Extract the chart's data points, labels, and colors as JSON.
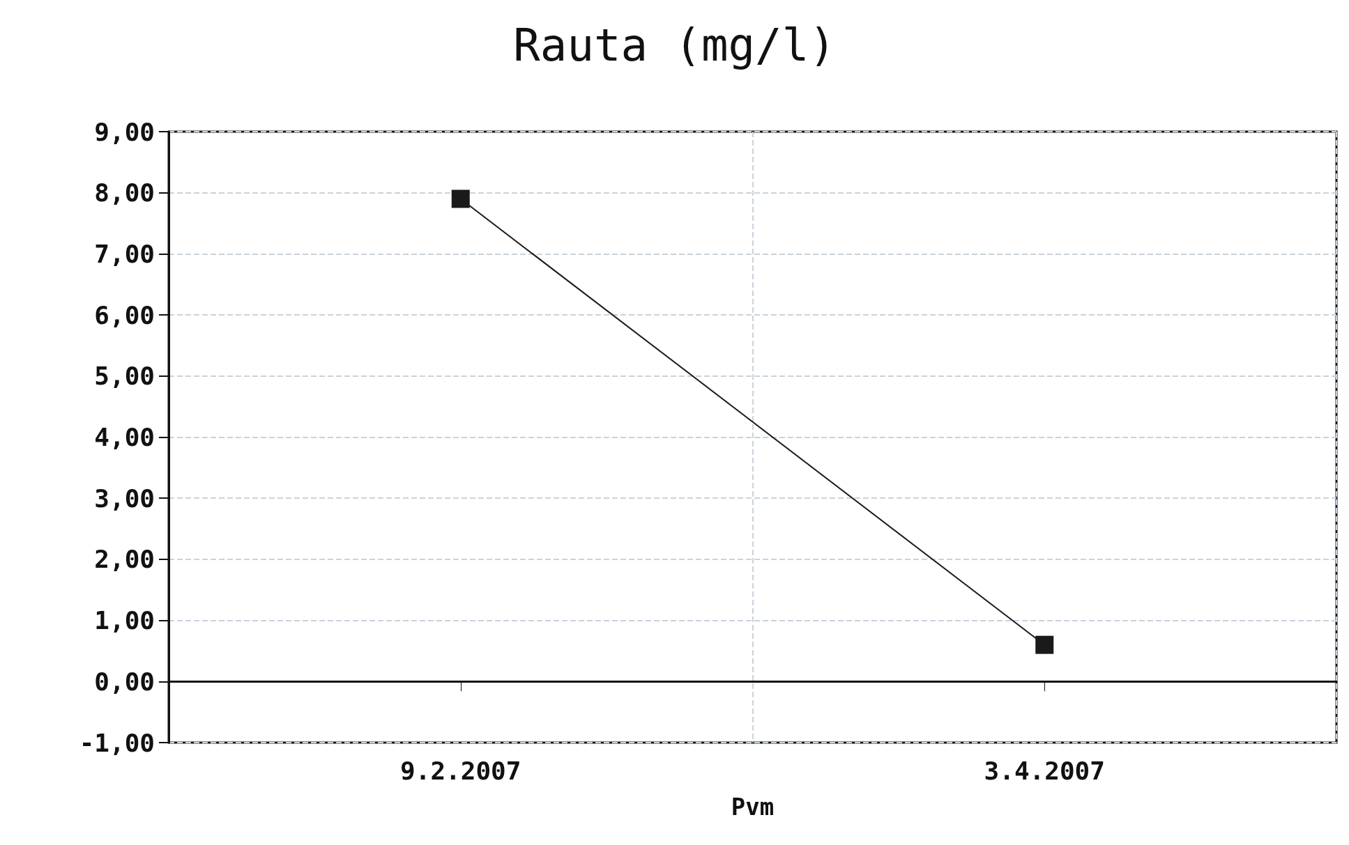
{
  "chart_data": {
    "type": "line",
    "title": "Rauta (mg/l)",
    "xlabel": "Pvm",
    "categories": [
      "9.2.2007",
      "3.4.2007"
    ],
    "series": [
      {
        "color": "#1a1a1a",
        "values": [
          7.9,
          0.6
        ]
      }
    ],
    "ylim": [
      -1,
      9
    ],
    "yticks": [
      {
        "value": -1,
        "label": "-1,00"
      },
      {
        "value": 0,
        "label": "0,00"
      },
      {
        "value": 1,
        "label": "1,00"
      },
      {
        "value": 2,
        "label": "2,00"
      },
      {
        "value": 3,
        "label": "3,00"
      },
      {
        "value": 4,
        "label": "4,00"
      },
      {
        "value": 5,
        "label": "5,00"
      },
      {
        "value": 6,
        "label": "6,00"
      },
      {
        "value": 7,
        "label": "7,00"
      },
      {
        "value": 8,
        "label": "8,00"
      },
      {
        "value": 9,
        "label": "9,00"
      }
    ],
    "grid": true,
    "marker": "square",
    "line_style": "solid"
  }
}
